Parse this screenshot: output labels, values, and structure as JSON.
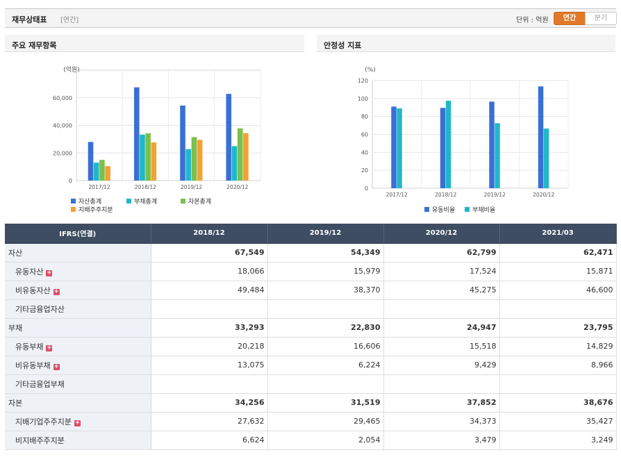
{
  "header": {
    "title": "재무상태표",
    "subtitle": "[연간]",
    "unit_label": "단위 : 억원",
    "toggle_annual": "연간",
    "toggle_quarter": "분기"
  },
  "left_panel": {
    "title": "주요 재무항목"
  },
  "right_panel": {
    "title": "안정성 지표"
  },
  "chart_data": [
    {
      "type": "bar",
      "title": "",
      "ylabel": "(억원)",
      "ylim": [
        0,
        80000
      ],
      "yticks": [
        0,
        20000,
        40000,
        60000
      ],
      "ytick_labels": [
        "0",
        "20,000",
        "40,000",
        "60,000"
      ],
      "categories": [
        "2017/12",
        "2018/12",
        "2019/12",
        "2020/12"
      ],
      "series": [
        {
          "name": "자산총계",
          "color": "#3a70d4",
          "values": [
            28000,
            67549,
            54349,
            62799
          ]
        },
        {
          "name": "부채총계",
          "color": "#20b8c8",
          "values": [
            13000,
            33293,
            22830,
            24947
          ]
        },
        {
          "name": "자본총계",
          "color": "#7cc04a",
          "values": [
            15000,
            34256,
            31519,
            37852
          ]
        },
        {
          "name": "지배주주지분",
          "color": "#f5a033",
          "values": [
            10500,
            27632,
            29465,
            34373
          ]
        }
      ],
      "grid": true,
      "legend": "bottom"
    },
    {
      "type": "bar",
      "title": "",
      "ylabel": "(%)",
      "ylim": [
        0,
        120
      ],
      "yticks": [
        0,
        20,
        40,
        60,
        80,
        100,
        120
      ],
      "ytick_labels": [
        "0",
        "20",
        "40",
        "60",
        "80",
        "100",
        "120"
      ],
      "categories": [
        "2017/12",
        "2018/12",
        "2019/12",
        "2020/12"
      ],
      "series": [
        {
          "name": "유동비율",
          "color": "#3a70d4",
          "values": [
            91,
            89.5,
            96.5,
            113.5
          ]
        },
        {
          "name": "부채비율",
          "color": "#20b8c8",
          "values": [
            89,
            97.5,
            72.5,
            66.5
          ]
        }
      ],
      "grid": true,
      "legend": "bottom"
    }
  ],
  "table": {
    "corner": "IFRS(연결)",
    "columns": [
      "2018/12",
      "2019/12",
      "2020/12",
      "2021/03"
    ],
    "rows": [
      {
        "label": "자산",
        "level": 0,
        "plus": false,
        "values": [
          "67,549",
          "54,349",
          "62,799",
          "62,471"
        ]
      },
      {
        "label": "유동자산",
        "level": 1,
        "plus": true,
        "values": [
          "18,066",
          "15,979",
          "17,524",
          "15,871"
        ]
      },
      {
        "label": "비유동자산",
        "level": 1,
        "plus": true,
        "values": [
          "49,484",
          "38,370",
          "45,275",
          "46,600"
        ]
      },
      {
        "label": "기타금융업자산",
        "level": 1,
        "plus": false,
        "values": [
          "",
          "",
          "",
          ""
        ]
      },
      {
        "label": "부채",
        "level": 0,
        "plus": false,
        "values": [
          "33,293",
          "22,830",
          "24,947",
          "23,795"
        ]
      },
      {
        "label": "유동부채",
        "level": 1,
        "plus": true,
        "values": [
          "20,218",
          "16,606",
          "15,518",
          "14,829"
        ]
      },
      {
        "label": "비유동부채",
        "level": 1,
        "plus": true,
        "values": [
          "13,075",
          "6,224",
          "9,429",
          "8,966"
        ]
      },
      {
        "label": "기타금융업부채",
        "level": 1,
        "plus": false,
        "values": [
          "",
          "",
          "",
          ""
        ]
      },
      {
        "label": "자본",
        "level": 0,
        "plus": false,
        "values": [
          "34,256",
          "31,519",
          "37,852",
          "38,676"
        ]
      },
      {
        "label": "지배기업주주지분",
        "level": 1,
        "plus": true,
        "values": [
          "27,632",
          "29,465",
          "34,373",
          "35,427"
        ]
      },
      {
        "label": "비지배주주지분",
        "level": 1,
        "plus": false,
        "values": [
          "6,624",
          "2,054",
          "3,479",
          "3,249"
        ]
      }
    ]
  }
}
